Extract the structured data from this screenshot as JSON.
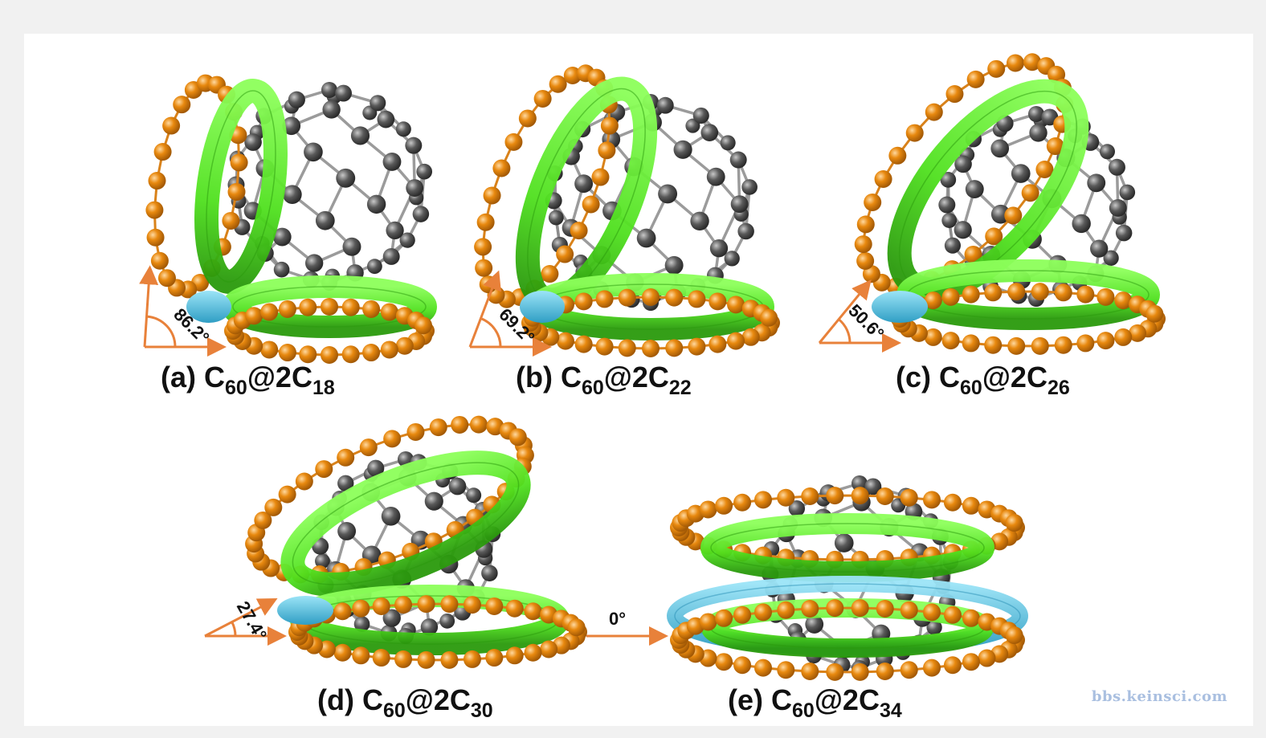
{
  "panels": [
    {
      "id": "a",
      "prefix": "(a) C",
      "sub1": "60",
      "mid": "@2C",
      "sub2": "18",
      "angle": "86.2°",
      "tilt_deg": 86.2
    },
    {
      "id": "b",
      "prefix": "(b) C",
      "sub1": "60",
      "mid": "@2C",
      "sub2": "22",
      "angle": "69.2°",
      "tilt_deg": 69.2
    },
    {
      "id": "c",
      "prefix": "(c) C",
      "sub1": "60",
      "mid": "@2C",
      "sub2": "26",
      "angle": "50.6°",
      "tilt_deg": 50.6
    },
    {
      "id": "d",
      "prefix": "(d) C",
      "sub1": "60",
      "mid": "@2C",
      "sub2": "30",
      "angle": "27.4°",
      "tilt_deg": 27.4
    },
    {
      "id": "e",
      "prefix": "(e) C",
      "sub1": "60",
      "mid": "@2C",
      "sub2": "34",
      "angle": "0°",
      "tilt_deg": 0
    }
  ],
  "watermark": "bbs.keinsci.com",
  "colors": {
    "ring_atom": "#e8890f",
    "ring_bond": "#d9821a",
    "fullerene_atom": "#5a5a5a",
    "fullerene_bond": "#8a8a8a",
    "green_surface": "#4fe01e",
    "cyan_surface": "#5bc6e8",
    "arrow": "#e8813a"
  }
}
